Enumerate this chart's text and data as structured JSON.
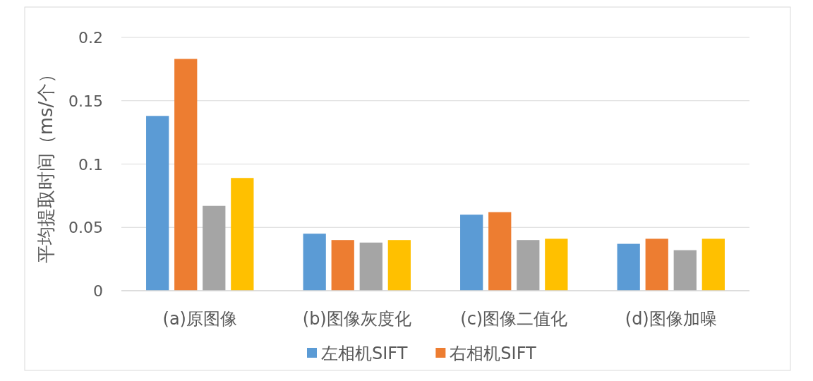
{
  "chart_data": {
    "type": "bar",
    "ylabel": "平均提取时间（ms/个）",
    "categories": [
      "(a)原图像",
      "(b)图像灰度化",
      "(c)图像二值化",
      "(d)图像加噪"
    ],
    "series": [
      {
        "name": "左相机SIFT",
        "color": "#5b9bd5",
        "values": [
          0.138,
          0.045,
          0.06,
          0.037
        ]
      },
      {
        "name": "右相机SIFT",
        "color": "#ed7d31",
        "values": [
          0.183,
          0.04,
          0.062,
          0.041
        ]
      },
      {
        "color": "#a5a5a5",
        "values": [
          0.067,
          0.038,
          0.04,
          0.032
        ]
      },
      {
        "color": "#ffc000",
        "values": [
          0.089,
          0.04,
          0.041,
          0.041
        ]
      }
    ],
    "ylim": [
      0,
      0.2
    ],
    "yticks": [
      0,
      0.05,
      0.1,
      0.15,
      0.2
    ],
    "grid": "y",
    "legend": "bottom"
  }
}
